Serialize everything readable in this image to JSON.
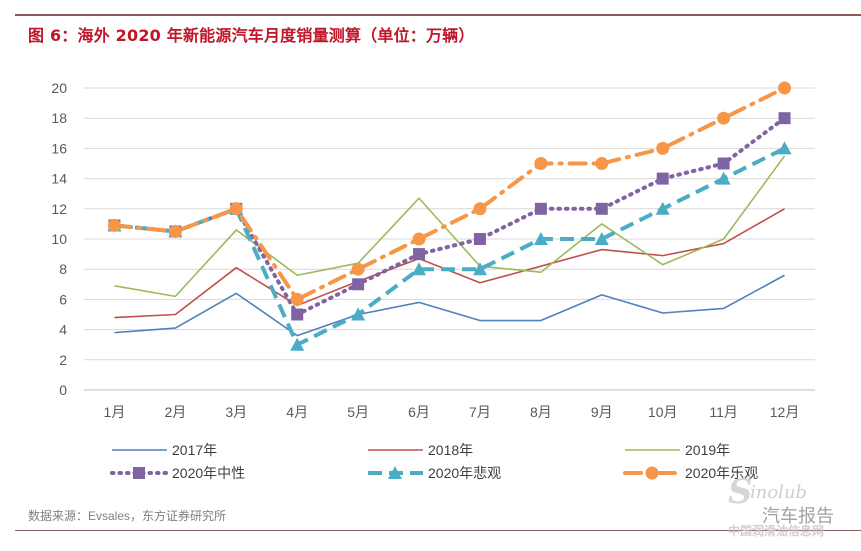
{
  "header": {
    "title": "图 6：海外 2020 年新能源汽车月度销量测算（单位：万辆）"
  },
  "footer": {
    "source": "数据来源：Evsales，东方证券研究所"
  },
  "watermark": {
    "logo_letter": "S",
    "brand": "inolub",
    "report": "汽车报告",
    "site": "中国润滑油信息网"
  },
  "chart_data": {
    "type": "line",
    "title": "图 6：海外 2020 年新能源汽车月度销量测算（单位：万辆）",
    "xlabel": "",
    "ylabel": "",
    "categories": [
      "1月",
      "2月",
      "3月",
      "4月",
      "5月",
      "6月",
      "7月",
      "8月",
      "9月",
      "10月",
      "11月",
      "12月"
    ],
    "ylim": [
      0,
      20
    ],
    "yticks": [
      0,
      2,
      4,
      6,
      8,
      10,
      12,
      14,
      16,
      18,
      20
    ],
    "grid": true,
    "legend_position": "bottom",
    "series": [
      {
        "name": "2017年",
        "color": "#4f81bd",
        "style": "solid",
        "marker": "none",
        "values": [
          3.8,
          4.1,
          6.4,
          3.6,
          5.0,
          5.8,
          4.6,
          4.6,
          6.3,
          5.1,
          5.4,
          7.6
        ]
      },
      {
        "name": "2018年",
        "color": "#c0504d",
        "style": "solid",
        "marker": "none",
        "values": [
          4.8,
          5.0,
          8.1,
          5.6,
          7.2,
          8.7,
          7.1,
          8.2,
          9.3,
          8.9,
          9.7,
          12.0
        ]
      },
      {
        "name": "2019年",
        "color": "#9bbb59",
        "style": "solid",
        "marker": "none",
        "values": [
          6.9,
          6.2,
          10.6,
          7.6,
          8.4,
          12.7,
          8.2,
          7.8,
          11.0,
          8.3,
          10.0,
          15.5
        ]
      },
      {
        "name": "2020年中性",
        "color": "#8064a2",
        "style": "dotted",
        "marker": "square",
        "values": [
          10.9,
          10.5,
          12,
          5,
          7,
          9,
          10,
          12,
          12,
          14,
          15,
          18
        ]
      },
      {
        "name": "2020年悲观",
        "color": "#4bacc6",
        "style": "dashed",
        "marker": "triangle",
        "values": [
          10.9,
          10.5,
          12,
          3,
          5,
          8,
          8,
          10,
          10,
          12,
          14,
          16
        ]
      },
      {
        "name": "2020年乐观",
        "color": "#f79646",
        "style": "dashdot",
        "marker": "circle",
        "values": [
          10.9,
          10.5,
          12,
          6,
          8,
          10,
          12,
          15,
          15,
          16,
          18,
          20
        ]
      }
    ]
  }
}
